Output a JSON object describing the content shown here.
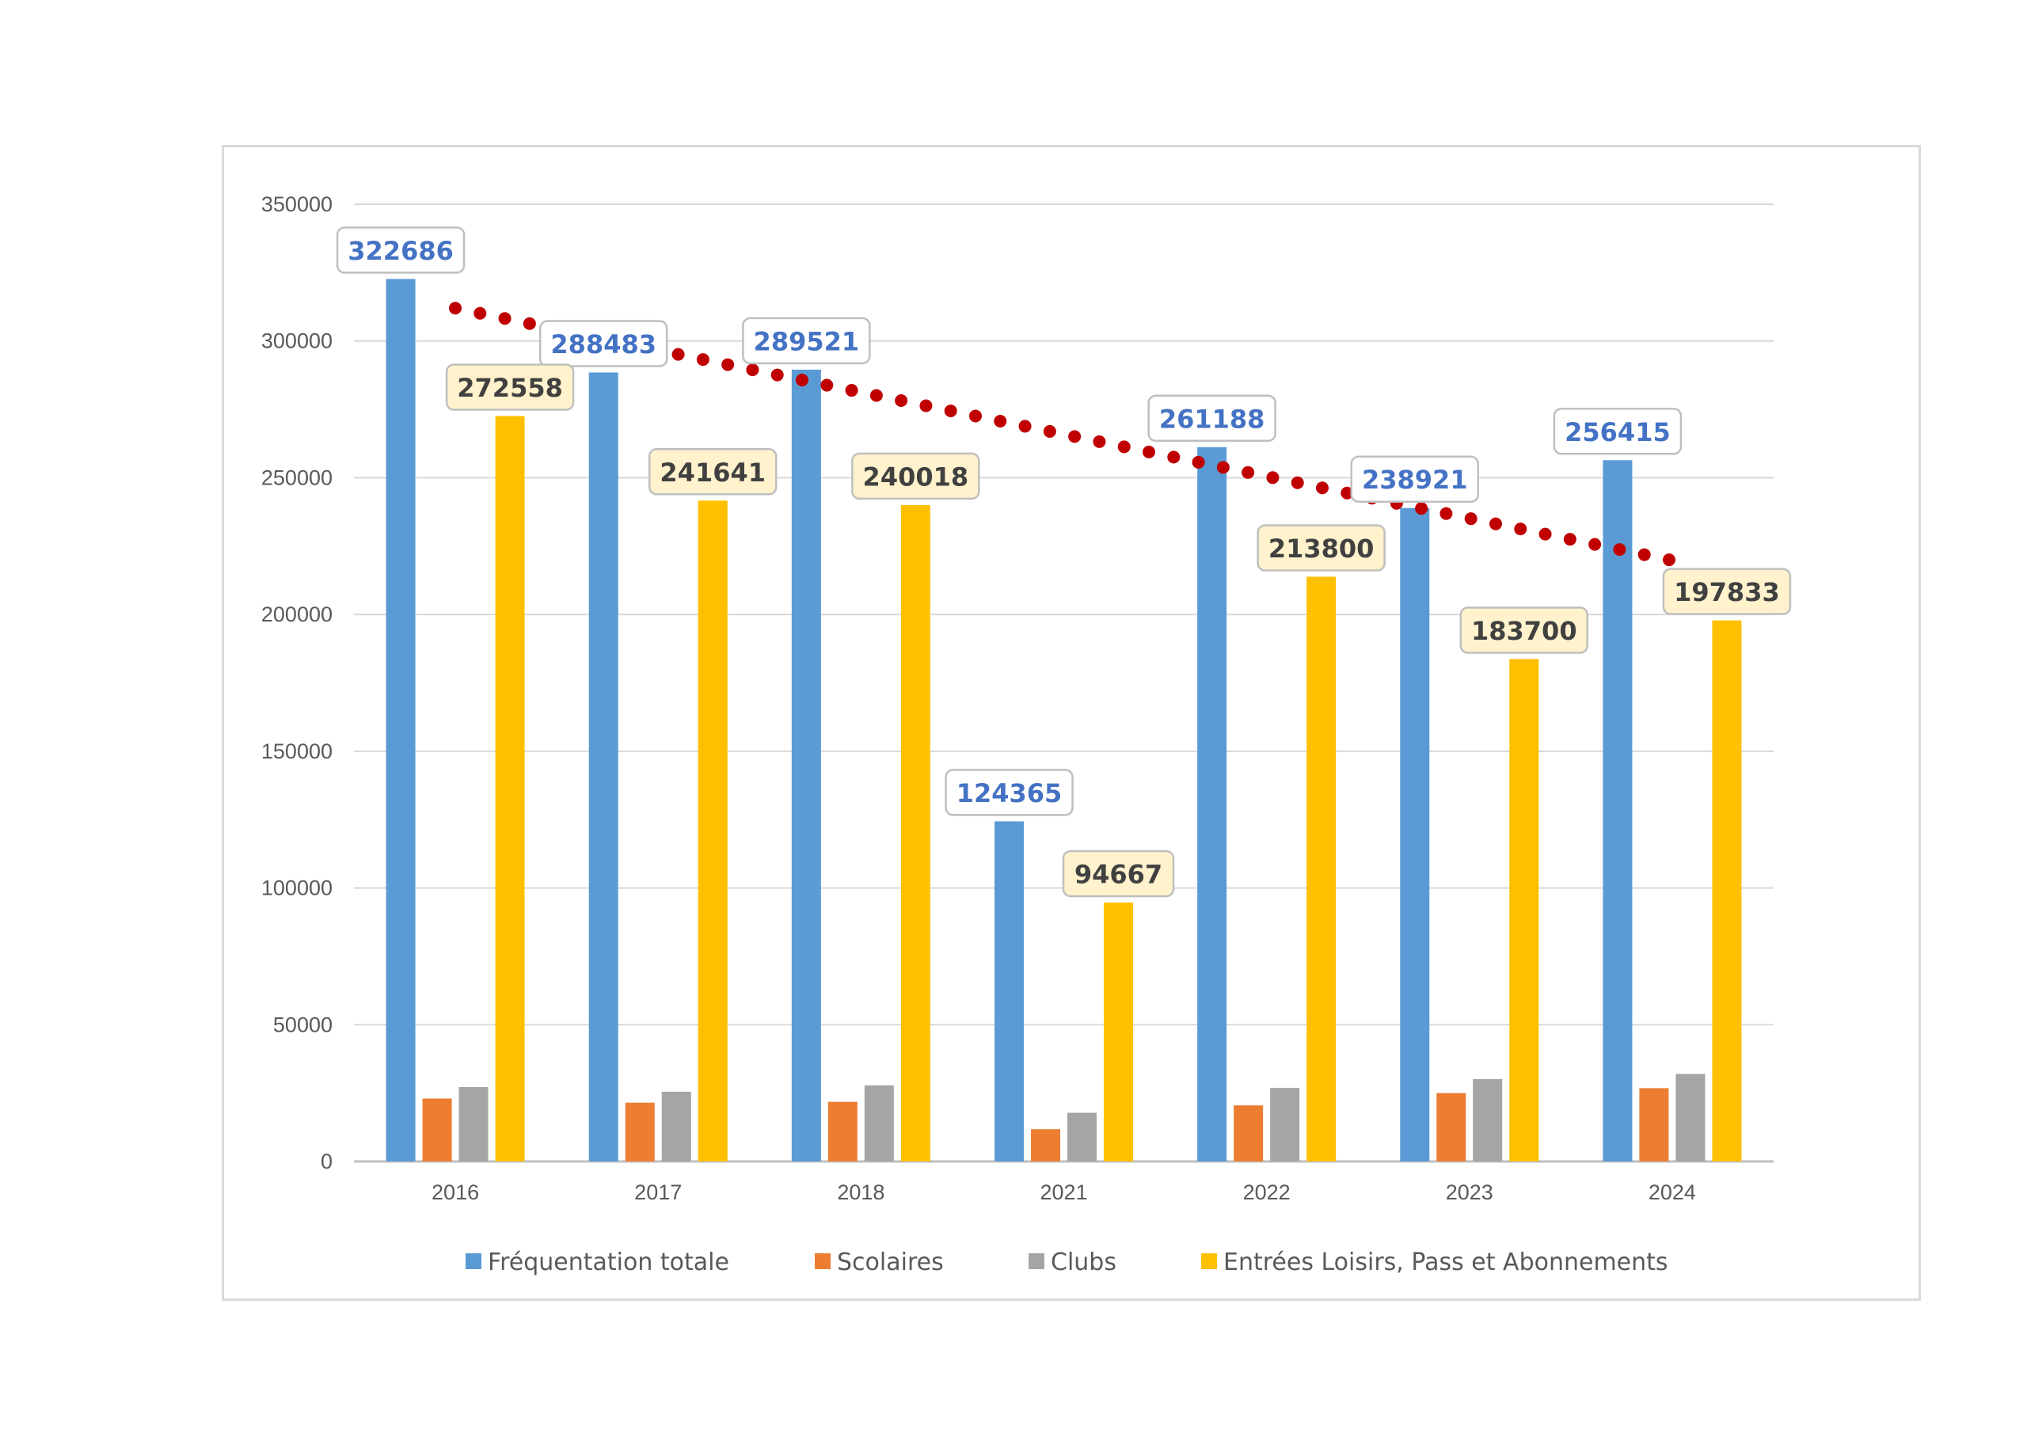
{
  "chart_data": {
    "type": "bar",
    "categories": [
      "2016",
      "2017",
      "2018",
      "2021",
      "2022",
      "2023",
      "2024"
    ],
    "series": [
      {
        "name": "Fréquentation totale",
        "color": "#5b9bd5",
        "values": [
          322686,
          288483,
          289521,
          124365,
          261188,
          238921,
          256415
        ]
      },
      {
        "name": "Scolaires",
        "color": "#ed7d31",
        "values": [
          23000,
          21500,
          21800,
          11800,
          20500,
          25000,
          26800
        ]
      },
      {
        "name": "Clubs",
        "color": "#a5a5a5",
        "values": [
          27200,
          25500,
          27800,
          17800,
          26900,
          30100,
          32000
        ]
      },
      {
        "name": "Entrées Loisirs, Pass et Abonnements",
        "color": "#ffc000",
        "values": [
          272558,
          241641,
          240018,
          94667,
          213800,
          183700,
          197833
        ]
      }
    ],
    "data_labels": {
      "Fréquentation totale": [
        "322686",
        "288483",
        "289521",
        "124365",
        "261188",
        "238921",
        "256415"
      ],
      "Entrées Loisirs, Pass et Abonnements": [
        "272558",
        "241641",
        "240018",
        "94667",
        "213800",
        "183700",
        "197833"
      ]
    },
    "trendline": {
      "type": "dotted",
      "color": "#c00000",
      "start": 312000,
      "end": 220000
    },
    "y_ticks": [
      "0",
      "50000",
      "100000",
      "150000",
      "200000",
      "250000",
      "300000",
      "350000"
    ],
    "ylim": [
      0,
      350000
    ],
    "grid": true,
    "legend_position": "bottom",
    "title": "",
    "xlabel": "",
    "ylabel": ""
  }
}
